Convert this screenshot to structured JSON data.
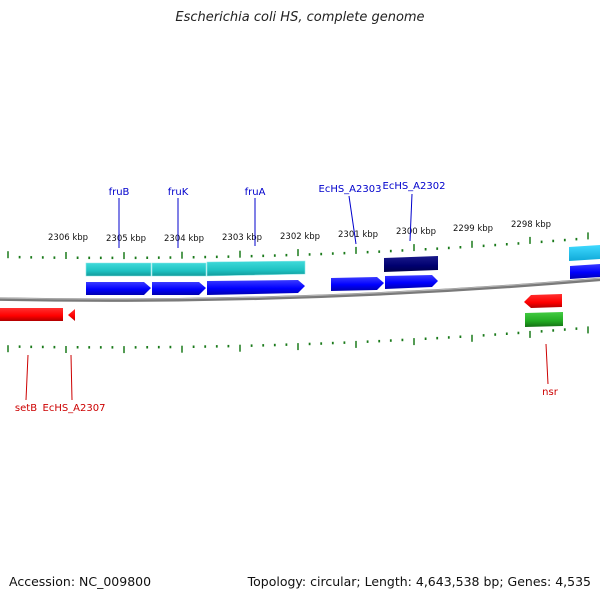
{
  "title": "Escherichia coli HS, complete genome",
  "footer": {
    "accession": "Accession: NC_009800",
    "summary": "Topology: circular; Length: 4,643,538 bp; Genes: 4,535"
  },
  "colors": {
    "backbone": "#808080",
    "tick": "#1a7a1a",
    "label_blue": "#0000cc",
    "label_red": "#cc0000",
    "cds_forward": "#0000ff",
    "cds_forward_dark": "#000080",
    "cyan_feature": "#20c8c8",
    "cds_reverse": "#ff0000",
    "green_feature": "#22aa22"
  },
  "axis": {
    "kbp_labels": [
      "2306 kbp",
      "2305 kbp",
      "2304 kbp",
      "2303 kbp",
      "2302 kbp",
      "2301 kbp",
      "2300 kbp",
      "2299 kbp",
      "2298 kbp"
    ]
  },
  "genes": [
    {
      "label": "fruB",
      "color": "blue"
    },
    {
      "label": "fruK",
      "color": "blue"
    },
    {
      "label": "fruA",
      "color": "blue"
    },
    {
      "label": "EcHS_A2303",
      "color": "blue"
    },
    {
      "label": "EcHS_A2302",
      "color": "blue"
    },
    {
      "label": "setB",
      "color": "red"
    },
    {
      "label": "EcHS_A2307",
      "color": "red"
    },
    {
      "label": "nsr",
      "color": "red"
    }
  ]
}
